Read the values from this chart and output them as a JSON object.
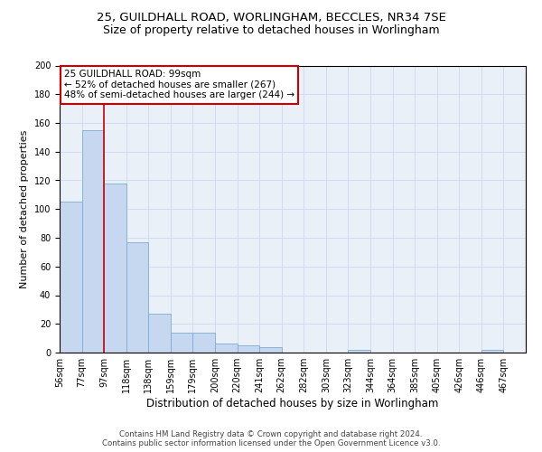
{
  "title_line1": "25, GUILDHALL ROAD, WORLINGHAM, BECCLES, NR34 7SE",
  "title_line2": "Size of property relative to detached houses in Worlingham",
  "xlabel": "Distribution of detached houses by size in Worlingham",
  "ylabel": "Number of detached properties",
  "footnote": "Contains HM Land Registry data © Crown copyright and database right 2024.\nContains public sector information licensed under the Open Government Licence v3.0.",
  "bar_labels": [
    "56sqm",
    "77sqm",
    "97sqm",
    "118sqm",
    "138sqm",
    "159sqm",
    "179sqm",
    "200sqm",
    "220sqm",
    "241sqm",
    "262sqm",
    "282sqm",
    "303sqm",
    "323sqm",
    "344sqm",
    "364sqm",
    "385sqm",
    "405sqm",
    "426sqm",
    "446sqm",
    "467sqm"
  ],
  "bar_values": [
    105,
    155,
    118,
    77,
    27,
    14,
    14,
    6,
    5,
    4,
    0,
    0,
    0,
    2,
    0,
    0,
    0,
    0,
    0,
    2,
    0
  ],
  "bar_color": "#c5d8f0",
  "bar_edge_color": "#7aadd4",
  "annotation_text_line1": "25 GUILDHALL ROAD: 99sqm",
  "annotation_text_line2": "← 52% of detached houses are smaller (267)",
  "annotation_text_line3": "48% of semi-detached houses are larger (244) →",
  "annotation_box_color": "#ffffff",
  "annotation_box_edge": "#cc0000",
  "vline_color": "#cc0000",
  "vline_x": 2.0,
  "ylim": [
    0,
    200
  ],
  "yticks": [
    0,
    20,
    40,
    60,
    80,
    100,
    120,
    140,
    160,
    180,
    200
  ],
  "grid_color": "#c8d4e8",
  "bg_color": "#eaf0f8",
  "bar_width": 1.0,
  "title_fontsize": 9.5,
  "subtitle_fontsize": 9,
  "xlabel_fontsize": 8.5,
  "ylabel_fontsize": 8,
  "tick_fontsize": 7,
  "annot_fontsize": 7.5
}
